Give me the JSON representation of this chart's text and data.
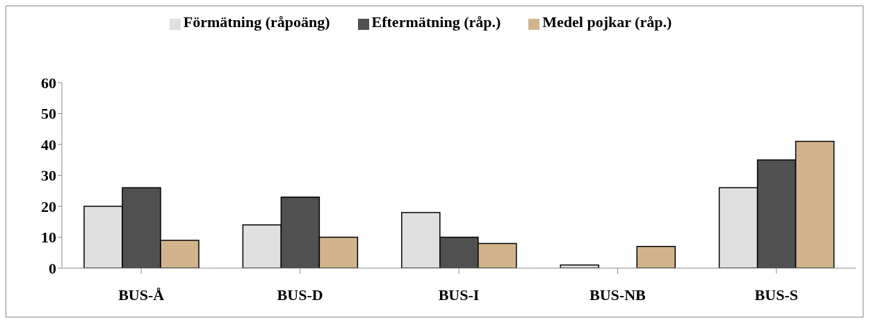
{
  "chart_data": {
    "type": "bar",
    "categories": [
      "BUS-Å",
      "BUS-D",
      "BUS-I",
      "BUS-NB",
      "BUS-S"
    ],
    "series": [
      {
        "name": "Förmätning (råpoäng)",
        "color": "#e0e0e0",
        "values": [
          20,
          14,
          18,
          1,
          26
        ]
      },
      {
        "name": "Eftermätning (råp.)",
        "color": "#505050",
        "values": [
          26,
          23,
          10,
          null,
          35
        ]
      },
      {
        "name": "Medel pojkar (råp.)",
        "color": "#d2b48c",
        "values": [
          9,
          10,
          8,
          7,
          41
        ]
      }
    ],
    "ylim": [
      0,
      60
    ],
    "yticks": [
      0,
      10,
      20,
      30,
      40,
      50,
      60
    ],
    "grid": false,
    "legend": "top"
  }
}
